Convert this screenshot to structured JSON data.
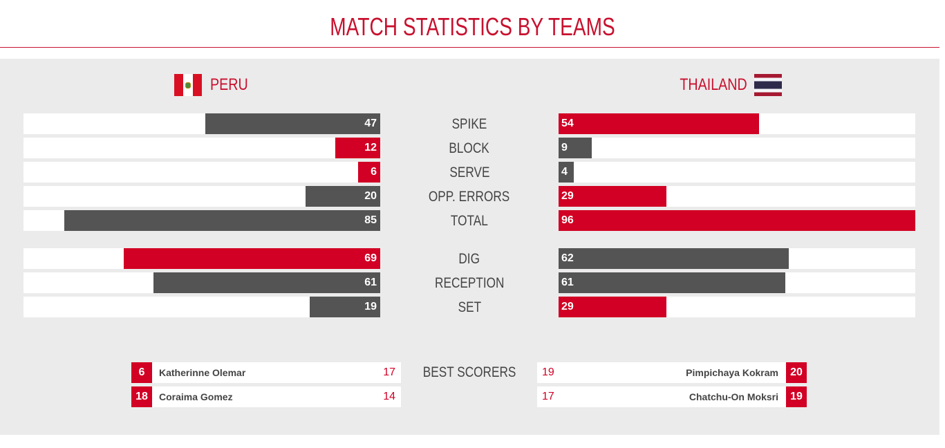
{
  "header": {
    "title": "MATCH STATISTICS BY TEAMS"
  },
  "teams": {
    "left": {
      "name": "PERU",
      "flag_icon": "peru-flag-icon"
    },
    "right": {
      "name": "THAILAND",
      "flag_icon": "thailand-flag-icon"
    }
  },
  "colors": {
    "accent": "#d10024",
    "neutral_bar": "#545454",
    "panel": "#ecebeb",
    "text": "#444444"
  },
  "bar_scale_max": 96,
  "stats": [
    {
      "label": "SPIKE",
      "left": 47,
      "right": 54
    },
    {
      "label": "BLOCK",
      "left": 12,
      "right": 9
    },
    {
      "label": "SERVE",
      "left": 6,
      "right": 4
    },
    {
      "label": "OPP. ERRORS",
      "left": 20,
      "right": 29
    },
    {
      "label": "TOTAL",
      "left": 85,
      "right": 96
    },
    {
      "label": "DIG",
      "left": 69,
      "right": 62
    },
    {
      "label": "RECEPTION",
      "left": 61,
      "right": 61
    },
    {
      "label": "SET",
      "left": 19,
      "right": 29
    }
  ],
  "best_scorers": {
    "label": "BEST SCORERS",
    "left": [
      {
        "rank": "6",
        "name": "Katherinne Olemar",
        "points": "17"
      },
      {
        "rank": "18",
        "name": "Coraima Gomez",
        "points": "14"
      }
    ],
    "right": [
      {
        "rank": "20",
        "name": "Pimpichaya Kokram",
        "points": "19"
      },
      {
        "rank": "19",
        "name": "Chatchu-On Moksri",
        "points": "17"
      }
    ]
  }
}
